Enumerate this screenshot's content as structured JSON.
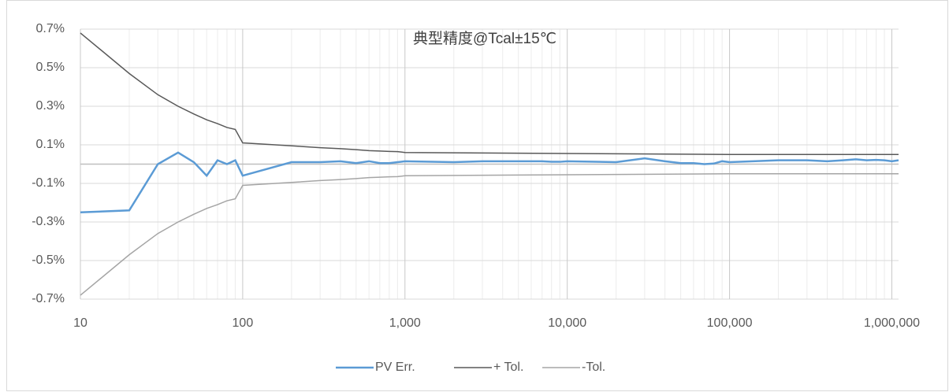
{
  "chart_data": {
    "type": "line",
    "title": "典型精度@Tcal±15℃",
    "xscale": "log",
    "xlim": [
      10,
      1100000
    ],
    "xticks": [
      {
        "value": 10,
        "label": "10"
      },
      {
        "value": 100,
        "label": "100"
      },
      {
        "value": 1000,
        "label": "1,000"
      },
      {
        "value": 10000,
        "label": "10,000"
      },
      {
        "value": 100000,
        "label": "100,000"
      },
      {
        "value": 1000000,
        "label": "1,000,000"
      }
    ],
    "ylim": [
      -0.7,
      0.7
    ],
    "yticks": [
      {
        "value": 0.7,
        "label": "0.7%"
      },
      {
        "value": 0.5,
        "label": "0.5%"
      },
      {
        "value": 0.3,
        "label": "0.3%"
      },
      {
        "value": 0.1,
        "label": "0.1%"
      },
      {
        "value": -0.1,
        "label": "-0.1%"
      },
      {
        "value": -0.3,
        "label": "-0.3%"
      },
      {
        "value": -0.5,
        "label": "-0.5%"
      },
      {
        "value": -0.7,
        "label": "-0.7%"
      }
    ],
    "grid": true,
    "legend": "bottom",
    "series": [
      {
        "name": "PV Err.",
        "color": "#5b9bd5",
        "x": [
          10,
          20,
          30,
          40,
          50,
          60,
          70,
          80,
          90,
          100,
          200,
          300,
          400,
          500,
          600,
          700,
          800,
          900,
          1000,
          2000,
          3000,
          4000,
          5000,
          6000,
          7000,
          8000,
          9000,
          10000,
          20000,
          30000,
          40000,
          50000,
          60000,
          70000,
          80000,
          90000,
          100000,
          200000,
          300000,
          400000,
          500000,
          600000,
          700000,
          800000,
          900000,
          1000000,
          1100000
        ],
        "values": [
          -0.25,
          -0.24,
          0.0,
          0.06,
          0.01,
          -0.06,
          0.02,
          0.0,
          0.02,
          -0.06,
          0.01,
          0.01,
          0.015,
          0.005,
          0.015,
          0.005,
          0.005,
          0.01,
          0.015,
          0.01,
          0.015,
          0.015,
          0.015,
          0.015,
          0.015,
          0.012,
          0.012,
          0.015,
          0.01,
          0.03,
          0.015,
          0.005,
          0.005,
          0.0,
          0.003,
          0.015,
          0.01,
          0.02,
          0.02,
          0.015,
          0.02,
          0.025,
          0.02,
          0.022,
          0.02,
          0.015,
          0.02
        ]
      },
      {
        "name": "+ Tol.",
        "color": "#595959",
        "x": [
          10,
          20,
          30,
          40,
          50,
          60,
          70,
          80,
          90,
          100,
          200,
          300,
          400,
          500,
          600,
          700,
          800,
          900,
          1000,
          10000,
          100000,
          1000000,
          1100000
        ],
        "values": [
          0.68,
          0.47,
          0.36,
          0.3,
          0.26,
          0.23,
          0.21,
          0.19,
          0.18,
          0.11,
          0.095,
          0.085,
          0.08,
          0.075,
          0.07,
          0.068,
          0.066,
          0.065,
          0.06,
          0.055,
          0.05,
          0.05,
          0.05
        ]
      },
      {
        "name": "-Tol.",
        "color": "#a5a5a5",
        "x": [
          10,
          20,
          30,
          40,
          50,
          60,
          70,
          80,
          90,
          100,
          200,
          300,
          400,
          500,
          600,
          700,
          800,
          900,
          1000,
          10000,
          100000,
          1000000,
          1100000
        ],
        "values": [
          -0.68,
          -0.47,
          -0.36,
          -0.3,
          -0.26,
          -0.23,
          -0.21,
          -0.19,
          -0.18,
          -0.11,
          -0.095,
          -0.085,
          -0.08,
          -0.075,
          -0.07,
          -0.068,
          -0.066,
          -0.065,
          -0.06,
          -0.055,
          -0.05,
          -0.05,
          -0.05
        ]
      }
    ]
  }
}
